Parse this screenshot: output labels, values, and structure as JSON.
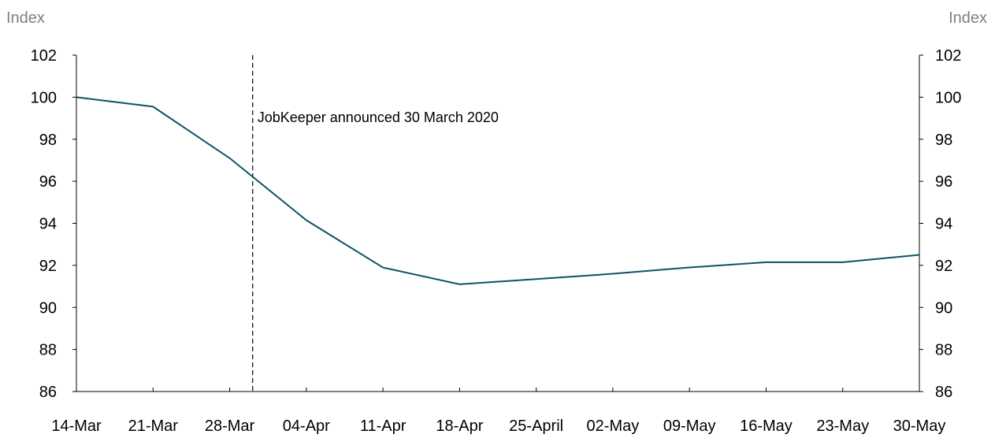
{
  "chart_data": {
    "type": "line",
    "categories": [
      "14-Mar",
      "21-Mar",
      "28-Mar",
      "04-Apr",
      "11-Apr",
      "18-Apr",
      "25-April",
      "02-May",
      "09-May",
      "16-May",
      "23-May",
      "30-May"
    ],
    "series": [
      {
        "values": [
          100.0,
          99.55,
          97.1,
          94.15,
          91.9,
          91.1,
          91.35,
          91.6,
          91.9,
          92.15,
          92.15,
          92.5
        ],
        "color": "#0d5364"
      }
    ],
    "y_left_label": "Index",
    "y_right_label": "Index",
    "ylim": [
      86,
      102
    ],
    "yticks": [
      86,
      88,
      90,
      92,
      94,
      96,
      98,
      100,
      102
    ],
    "grid": false,
    "legend": "none",
    "annotation": {
      "text": "JobKeeper announced 30 March 2020",
      "x_category_position": 2.3,
      "style": "dashed-vertical-line"
    }
  }
}
